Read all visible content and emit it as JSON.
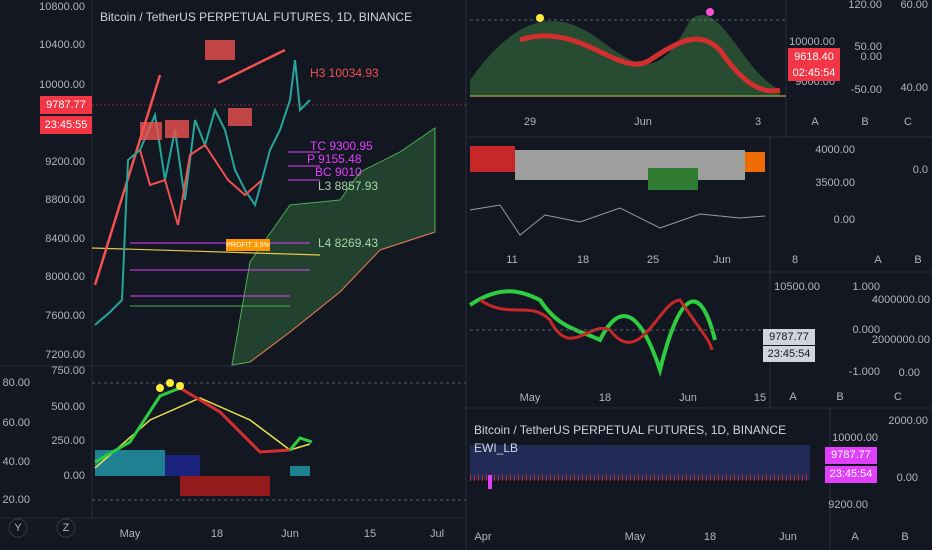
{
  "main": {
    "title": "Bitcoin / TetherUS PERPETUAL FUTURES, 1D, BINANCE",
    "price_axis": [
      "10800.00",
      "10400.00",
      "10000.00",
      "9200.00",
      "8800.00",
      "8400.00",
      "8000.00",
      "7600.00",
      "7200.00"
    ],
    "last_price": "9787.77",
    "countdown": "23:45:55",
    "annotations": [
      "H3 10034.93",
      "TC 9300.95",
      "P 9155.48",
      "BC 9010",
      "L3 8857.93",
      "L4 8269.43"
    ],
    "profit": "PROFIT 3.5%",
    "time_axis": [
      "May",
      "18",
      "Jun",
      "15",
      "Jul"
    ]
  },
  "oscillator": {
    "left_axis": [
      "80.00",
      "60.00",
      "40.00",
      "20.00"
    ],
    "right_axis": [
      "750.00",
      "500.00",
      "250.00",
      "0.00"
    ]
  },
  "corner_buttons": [
    "Y",
    "Z"
  ],
  "panel1": {
    "left_axis": [
      "10000.00",
      "9000.00"
    ],
    "right_axis": [
      "120.00",
      "50.00",
      "0.00",
      "-50.00"
    ],
    "far_axis": [
      "60.00",
      "40.00"
    ],
    "price": "9618.40",
    "countdown": "02:45:54",
    "time_axis": [
      "29",
      "Jun",
      "3"
    ],
    "buttons": [
      "A",
      "B",
      "C"
    ]
  },
  "panel2": {
    "left_axis": [
      "4000.00",
      "3500.00",
      "0.00"
    ],
    "right_axis": [
      "0.0"
    ],
    "time_axis": [
      "11",
      "18",
      "25",
      "Jun",
      "8"
    ],
    "buttons": [
      "A",
      "B"
    ]
  },
  "panel3": {
    "left_axis": [
      "10500.00"
    ],
    "mid_axis": [
      "1.000",
      "0.000",
      "-1.000"
    ],
    "right_axis": [
      "4000000.00",
      "2000000.00",
      "0.00"
    ],
    "price": "9787.77",
    "countdown": "23:45:54",
    "time_axis": [
      "May",
      "18",
      "Jun",
      "15"
    ],
    "buttons": [
      "A",
      "B",
      "C"
    ]
  },
  "panel4": {
    "title": "Bitcoin / TetherUS PERPETUAL FUTURES, 1D, BINANCE",
    "indicator": "EWI_LB",
    "left_axis": [
      "10000.00",
      "9200.00"
    ],
    "right_axis": [
      "2000.00",
      "0.00"
    ],
    "price": "9787.77",
    "countdown": "23:45:54",
    "time_axis": [
      "Apr",
      "May",
      "18",
      "Jun"
    ],
    "buttons": [
      "A",
      "B"
    ]
  }
}
